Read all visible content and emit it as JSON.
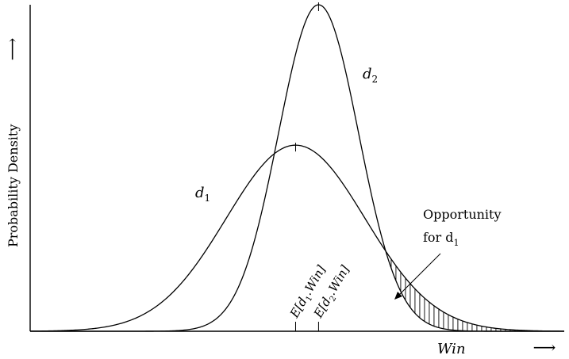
{
  "chart_data": {
    "type": "line",
    "title": "",
    "xlabel": "Win",
    "ylabel": "Probability Density",
    "x_arrow": "⟶",
    "y_arrow": "⟶",
    "ticks_shown": false,
    "series": [
      {
        "name": "d1",
        "mean": 0.497,
        "sd": 0.13,
        "peak": 0.57
      },
      {
        "name": "d2",
        "mean": 0.54,
        "sd": 0.075,
        "peak": 1.0
      }
    ],
    "curve_labels": [
      {
        "series": "d1",
        "text": "d",
        "sub": "1"
      },
      {
        "series": "d2",
        "text": "d",
        "sub": "2"
      }
    ],
    "mean_labels": [
      {
        "series": "d1",
        "pre": "E[d",
        "sub": "1",
        "post": ".Win]"
      },
      {
        "series": "d2",
        "pre": "E[d",
        "sub": "2",
        "post": ".Win]"
      }
    ],
    "shaded_region": {
      "description": "area between d1 and d2 where d1 exceeds d2",
      "x_from": 0.673,
      "x_to": 1.0,
      "pattern": "vertical hatching"
    },
    "annotation": {
      "line1": "Opportunity",
      "line2_pre": "for d",
      "line2_sub": "1"
    },
    "xlim": [
      0,
      1
    ],
    "ylim": [
      0,
      1
    ]
  }
}
